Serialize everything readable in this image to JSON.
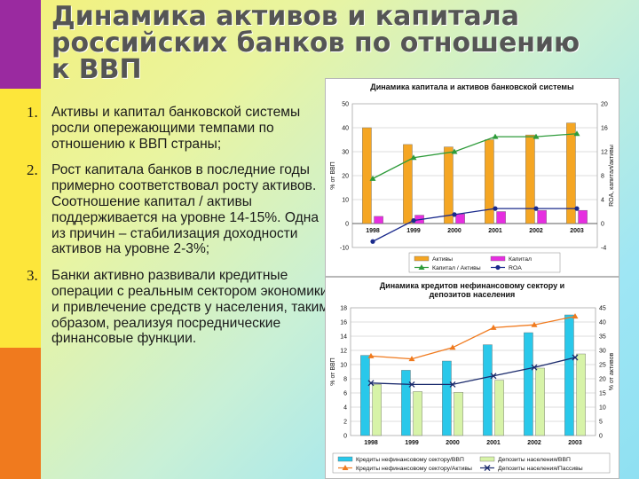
{
  "slide": {
    "title": "Динамика активов и капитала российских банков по отношению к ВВП",
    "bullets": [
      {
        "num": "1.",
        "text": "Активы и капитал банковской системы росли опережающими темпами по отношению к ВВП страны;"
      },
      {
        "num": "2.",
        "text": "Рост капитала банков в последние годы примерно соответствовал росту активов. Соотношение капитал / активы поддерживается на уровне 14-15%. Одна из причин – стабилизация доходности активов на уровне 2-3%;"
      },
      {
        "num": "3.",
        "text": " Банки активно развивали кредитные операции с реальным сектором экономики и привлечение средств у населения, таким образом, реализуя посреднические финансовые функции."
      }
    ],
    "colors": {
      "purple_band": "#9a2aa0",
      "yellow_band": "#fde63a",
      "orange_band": "#f07a1e"
    }
  },
  "chart_data": [
    {
      "type": "bar",
      "title": "Динамика капитала и активов банковской системы",
      "categories": [
        "1998",
        "1999",
        "2000",
        "2001",
        "2002",
        "2003"
      ],
      "ylabel": "% от ВВП",
      "y2label": "ROA, капитал/активы",
      "ylim": [
        -10,
        50
      ],
      "y_ticks": [
        "-10",
        "0",
        "10",
        "20",
        "30",
        "40",
        "50"
      ],
      "y2lim": [
        -4,
        20
      ],
      "y2_ticks": [
        "-4",
        "0",
        "4",
        "8",
        "12",
        "16",
        "20"
      ],
      "grid": true,
      "legend_position": "bottom",
      "series": [
        {
          "name": "Активы",
          "kind": "bar",
          "axis": "left",
          "color": "#f5a623",
          "values": [
            40,
            33,
            32,
            35,
            37,
            42
          ]
        },
        {
          "name": "Капитал",
          "kind": "bar",
          "axis": "left",
          "color": "#e62ee0",
          "values": [
            3,
            3.5,
            4,
            5,
            5.5,
            5.5
          ]
        },
        {
          "name": "Капитал / Активы",
          "kind": "line",
          "axis": "right",
          "color": "#2e9b3a",
          "marker": "triangle",
          "values": [
            7.5,
            11,
            12,
            14.5,
            14.5,
            15
          ]
        },
        {
          "name": "ROA",
          "kind": "line",
          "axis": "right",
          "color": "#1a2a8c",
          "marker": "circle",
          "values": [
            -3,
            0.5,
            1.5,
            2.5,
            2.5,
            2.5
          ]
        }
      ]
    },
    {
      "type": "bar",
      "title": "Динамика кредитов нефинансовому сектору и депозитов населения",
      "categories": [
        "1998",
        "1999",
        "2000",
        "2001",
        "2002",
        "2003"
      ],
      "ylabel": "% от ВВП",
      "y2label": "% от активов",
      "ylim": [
        0,
        18
      ],
      "y_ticks": [
        "0",
        "2",
        "4",
        "6",
        "8",
        "10",
        "12",
        "14",
        "16",
        "18"
      ],
      "y2lim": [
        0,
        45
      ],
      "y2_ticks": [
        "0",
        "5",
        "10",
        "15",
        "20",
        "25",
        "30",
        "35",
        "40",
        "45"
      ],
      "grid": true,
      "legend_position": "bottom",
      "series": [
        {
          "name": "Кредиты нефинансовому сектору/ВВП",
          "kind": "bar",
          "axis": "left",
          "color": "#29c8ea",
          "values": [
            11.3,
            9.2,
            10.5,
            12.8,
            14.5,
            17
          ]
        },
        {
          "name": "Депозиты населения/ВВП",
          "kind": "bar",
          "axis": "left",
          "color": "#d7f3a8",
          "values": [
            7.2,
            6.2,
            6.1,
            7.8,
            9.5,
            11.5
          ]
        },
        {
          "name": "Кредиты нефинансовому сектору/Активы",
          "kind": "line",
          "axis": "right",
          "color": "#f07a1e",
          "marker": "triangle",
          "values": [
            28,
            27,
            31,
            38,
            39,
            42
          ]
        },
        {
          "name": "Депозиты населения/Пассивы",
          "kind": "line",
          "axis": "right",
          "color": "#1a2a6c",
          "marker": "x",
          "values": [
            18.5,
            18,
            18,
            21,
            24,
            27.5
          ]
        }
      ]
    }
  ]
}
